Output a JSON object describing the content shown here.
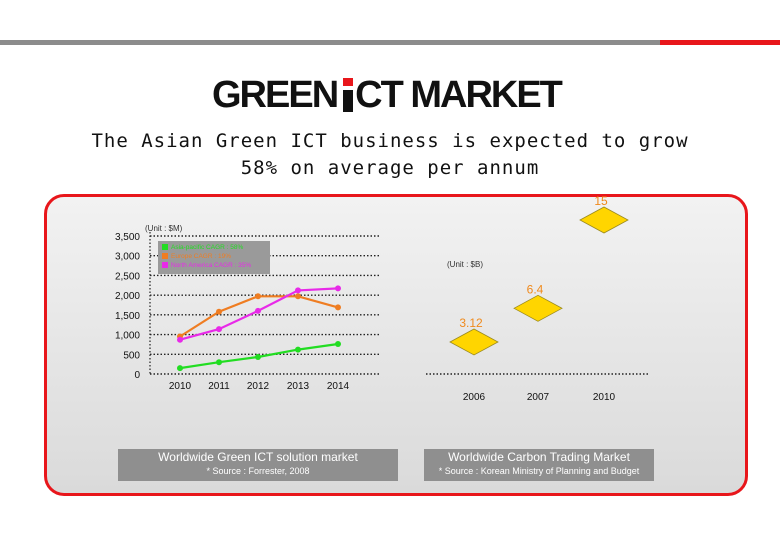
{
  "brand": {
    "word1": "GREEN",
    "word2": "CT MARKET",
    "accent": "#e8161b"
  },
  "subtitle": {
    "line1": "The Asian Green ICT business is expected to grow",
    "line2": "58% on average per annum"
  },
  "chart_data": [
    {
      "type": "line",
      "unit_label": "(Unit : $M)",
      "categories": [
        "2010",
        "2011",
        "2012",
        "2013",
        "2014"
      ],
      "yticks": [
        "3,500",
        "3,000",
        "2,500",
        "2,000",
        "1,500",
        "1,000",
        "500",
        "0"
      ],
      "ylim": [
        0,
        3500
      ],
      "series": [
        {
          "name": "Asia-pacific CAGR : 58%",
          "color": "#22dd22",
          "values": [
            150,
            300,
            430,
            620,
            760
          ]
        },
        {
          "name": "Europe CAGR : 19%",
          "color": "#ef7d22",
          "values": [
            950,
            1580,
            1970,
            1970,
            1690
          ]
        },
        {
          "name": "North America CAGR : 35%",
          "color": "#e82ae8",
          "values": [
            870,
            1140,
            1600,
            2120,
            2170
          ]
        }
      ],
      "caption": "Worldwide Green ICT solution market",
      "source": "* Source : Forrester, 2008"
    },
    {
      "type": "scatter",
      "unit_label": "(Unit : $B)",
      "categories": [
        "2006",
        "2007",
        "2010"
      ],
      "points": [
        {
          "x": "2006",
          "y": 3.12,
          "label": "3.12"
        },
        {
          "x": "2007",
          "y": 6.4,
          "label": "6.4"
        },
        {
          "x": "2010",
          "y": 15,
          "label": "15"
        }
      ],
      "marker_color": "#ffd500",
      "label_color": "#f08a1c",
      "caption": "Worldwide Carbon Trading Market",
      "source": "* Source : Korean Ministry of Planning and Budget"
    }
  ]
}
